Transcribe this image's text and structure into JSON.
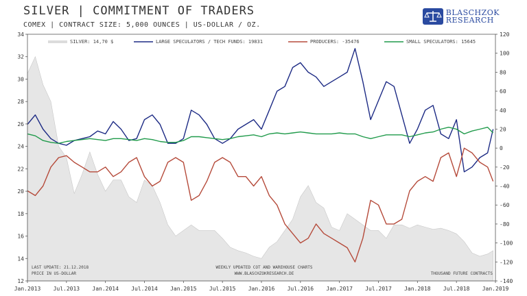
{
  "header": {
    "title": "SILVER | COMMITMENT OF TRADERS",
    "subtitle": "COMEX | CONTRACT SIZE: 5,000 OUNCES | US-DOLLAR / OZ.",
    "logo_line1": "BLASCHZOK",
    "logo_line2": "RESEARCH",
    "logo_color": "#2a4aa0"
  },
  "footer": {
    "last_update": "LAST UPDATE: 21.12.2018",
    "price_unit": "PRICE IN US-DOLLAR",
    "source": "WEEKLY UPDATED COT AND WAREHOUSE CHARTS",
    "website": "WWW.BLASCHZOKRESEARCH.DE",
    "unit_right": "THOUSAND FUTURE CONTRACTS"
  },
  "chart_data": {
    "type": "line",
    "x_ticks": [
      "Jan.2013",
      "Jul.2013",
      "Jan.2014",
      "Jul.2014",
      "Jan.2015",
      "Jul.2015",
      "Jan.2016",
      "Jul.2016",
      "Jan.2017",
      "Jul.2017",
      "Jan.2018",
      "Jul.2018",
      "Jan.2019"
    ],
    "y_left": {
      "lim": [
        12,
        34
      ],
      "ticks": [
        12,
        14,
        16,
        18,
        20,
        22,
        24,
        26,
        28,
        30,
        32,
        34
      ]
    },
    "y_right": {
      "lim": [
        -140,
        120
      ],
      "ticks": [
        -140,
        -120,
        -100,
        -80,
        -60,
        -40,
        -20,
        0,
        20,
        40,
        60,
        80,
        100,
        120
      ]
    },
    "grid": false,
    "legend_position": "top",
    "series": [
      {
        "name": "SILVER: 14,70 $",
        "kind": "area",
        "axis": "left",
        "color": "#e6e6e6",
        "x": [
          2013.0,
          2013.1,
          2013.2,
          2013.3,
          2013.4,
          2013.5,
          2013.6,
          2013.7,
          2013.8,
          2013.9,
          2014.0,
          2014.1,
          2014.2,
          2014.3,
          2014.4,
          2014.5,
          2014.6,
          2014.7,
          2014.8,
          2014.9,
          2015.0,
          2015.1,
          2015.2,
          2015.3,
          2015.4,
          2015.5,
          2015.6,
          2015.7,
          2015.8,
          2015.9,
          2016.0,
          2016.1,
          2016.2,
          2016.3,
          2016.4,
          2016.5,
          2016.6,
          2016.7,
          2016.8,
          2016.9,
          2017.0,
          2017.1,
          2017.2,
          2017.3,
          2017.4,
          2017.5,
          2017.6,
          2017.7,
          2017.8,
          2017.9,
          2018.0,
          2018.1,
          2018.2,
          2018.3,
          2018.4,
          2018.5,
          2018.6,
          2018.7,
          2018.8,
          2018.9,
          2018.97
        ],
        "y": [
          30.5,
          32.0,
          29.5,
          28.0,
          24.0,
          23.0,
          19.8,
          21.5,
          23.5,
          21.5,
          20.0,
          21.0,
          21.0,
          19.5,
          19.0,
          21.0,
          20.5,
          19.0,
          17.0,
          16.0,
          16.5,
          17.0,
          16.5,
          16.5,
          16.5,
          15.8,
          15.0,
          14.7,
          14.5,
          14.2,
          14.0,
          15.0,
          15.5,
          16.5,
          17.5,
          19.5,
          20.5,
          19.0,
          18.5,
          16.8,
          16.5,
          18.0,
          17.5,
          17.0,
          16.5,
          16.5,
          15.8,
          17.0,
          17.0,
          16.7,
          17.0,
          16.8,
          16.6,
          16.7,
          16.5,
          16.2,
          15.5,
          14.5,
          14.2,
          14.4,
          14.7
        ]
      },
      {
        "name": "LARGE SPECULATORS / TECH FUNDS: 19831",
        "kind": "line",
        "axis": "right",
        "color": "#1c2a84",
        "x": [
          2013.0,
          2013.1,
          2013.2,
          2013.3,
          2013.4,
          2013.5,
          2013.6,
          2013.7,
          2013.8,
          2013.9,
          2014.0,
          2014.1,
          2014.2,
          2014.3,
          2014.4,
          2014.5,
          2014.6,
          2014.7,
          2014.8,
          2014.9,
          2015.0,
          2015.1,
          2015.2,
          2015.3,
          2015.4,
          2015.5,
          2015.6,
          2015.7,
          2015.8,
          2015.9,
          2016.0,
          2016.1,
          2016.2,
          2016.3,
          2016.4,
          2016.5,
          2016.6,
          2016.7,
          2016.8,
          2016.9,
          2017.0,
          2017.1,
          2017.2,
          2017.3,
          2017.4,
          2017.5,
          2017.6,
          2017.7,
          2017.8,
          2017.9,
          2018.0,
          2018.1,
          2018.2,
          2018.3,
          2018.4,
          2018.5,
          2018.6,
          2018.7,
          2018.8,
          2018.9,
          2018.97
        ],
        "y": [
          25,
          35,
          20,
          10,
          5,
          3,
          8,
          10,
          12,
          18,
          15,
          28,
          20,
          8,
          10,
          30,
          35,
          25,
          5,
          5,
          10,
          40,
          35,
          25,
          10,
          5,
          10,
          20,
          25,
          30,
          20,
          40,
          60,
          65,
          85,
          90,
          80,
          75,
          65,
          70,
          75,
          80,
          105,
          70,
          30,
          50,
          70,
          65,
          35,
          5,
          20,
          40,
          45,
          15,
          10,
          30,
          -25,
          -20,
          -10,
          -5,
          20
        ]
      },
      {
        "name": "PRODUCERS: -35476",
        "kind": "line",
        "axis": "right",
        "color": "#b54a3a",
        "x": [
          2013.0,
          2013.1,
          2013.2,
          2013.3,
          2013.4,
          2013.5,
          2013.6,
          2013.7,
          2013.8,
          2013.9,
          2014.0,
          2014.1,
          2014.2,
          2014.3,
          2014.4,
          2014.5,
          2014.6,
          2014.7,
          2014.8,
          2014.9,
          2015.0,
          2015.1,
          2015.2,
          2015.3,
          2015.4,
          2015.5,
          2015.6,
          2015.7,
          2015.8,
          2015.9,
          2016.0,
          2016.1,
          2016.2,
          2016.3,
          2016.4,
          2016.5,
          2016.6,
          2016.7,
          2016.8,
          2016.9,
          2017.0,
          2017.1,
          2017.2,
          2017.3,
          2017.4,
          2017.5,
          2017.6,
          2017.7,
          2017.8,
          2017.9,
          2018.0,
          2018.1,
          2018.2,
          2018.3,
          2018.4,
          2018.5,
          2018.6,
          2018.7,
          2018.8,
          2018.9,
          2018.97
        ],
        "y": [
          -45,
          -50,
          -40,
          -20,
          -10,
          -8,
          -15,
          -20,
          -25,
          -25,
          -20,
          -30,
          -25,
          -15,
          -10,
          -30,
          -40,
          -35,
          -15,
          -10,
          -15,
          -55,
          -50,
          -35,
          -15,
          -10,
          -15,
          -30,
          -30,
          -40,
          -30,
          -50,
          -60,
          -80,
          -90,
          -100,
          -95,
          -80,
          -90,
          -95,
          -100,
          -105,
          -120,
          -95,
          -55,
          -60,
          -80,
          -80,
          -75,
          -45,
          -35,
          -30,
          -35,
          -10,
          -5,
          -30,
          0,
          -5,
          -15,
          -20,
          -35
        ]
      },
      {
        "name": "SMALL SPECULATORS: 15645",
        "kind": "line",
        "axis": "right",
        "color": "#1f9a4a",
        "x": [
          2013.0,
          2013.1,
          2013.2,
          2013.3,
          2013.4,
          2013.5,
          2013.6,
          2013.7,
          2013.8,
          2013.9,
          2014.0,
          2014.1,
          2014.2,
          2014.3,
          2014.4,
          2014.5,
          2014.6,
          2014.7,
          2014.8,
          2014.9,
          2015.0,
          2015.1,
          2015.2,
          2015.3,
          2015.4,
          2015.5,
          2015.6,
          2015.7,
          2015.8,
          2015.9,
          2016.0,
          2016.1,
          2016.2,
          2016.3,
          2016.4,
          2016.5,
          2016.6,
          2016.7,
          2016.8,
          2016.9,
          2017.0,
          2017.1,
          2017.2,
          2017.3,
          2017.4,
          2017.5,
          2017.6,
          2017.7,
          2017.8,
          2017.9,
          2018.0,
          2018.1,
          2018.2,
          2018.3,
          2018.4,
          2018.5,
          2018.6,
          2018.7,
          2018.8,
          2018.9,
          2018.97
        ],
        "y": [
          15,
          13,
          8,
          6,
          5,
          7,
          8,
          9,
          10,
          9,
          8,
          10,
          10,
          9,
          8,
          10,
          9,
          7,
          6,
          6,
          8,
          12,
          12,
          11,
          10,
          9,
          10,
          12,
          13,
          14,
          12,
          15,
          16,
          15,
          16,
          17,
          16,
          15,
          15,
          15,
          16,
          15,
          15,
          12,
          10,
          12,
          14,
          14,
          14,
          12,
          14,
          16,
          17,
          20,
          22,
          20,
          15,
          18,
          20,
          22,
          16
        ]
      }
    ]
  }
}
